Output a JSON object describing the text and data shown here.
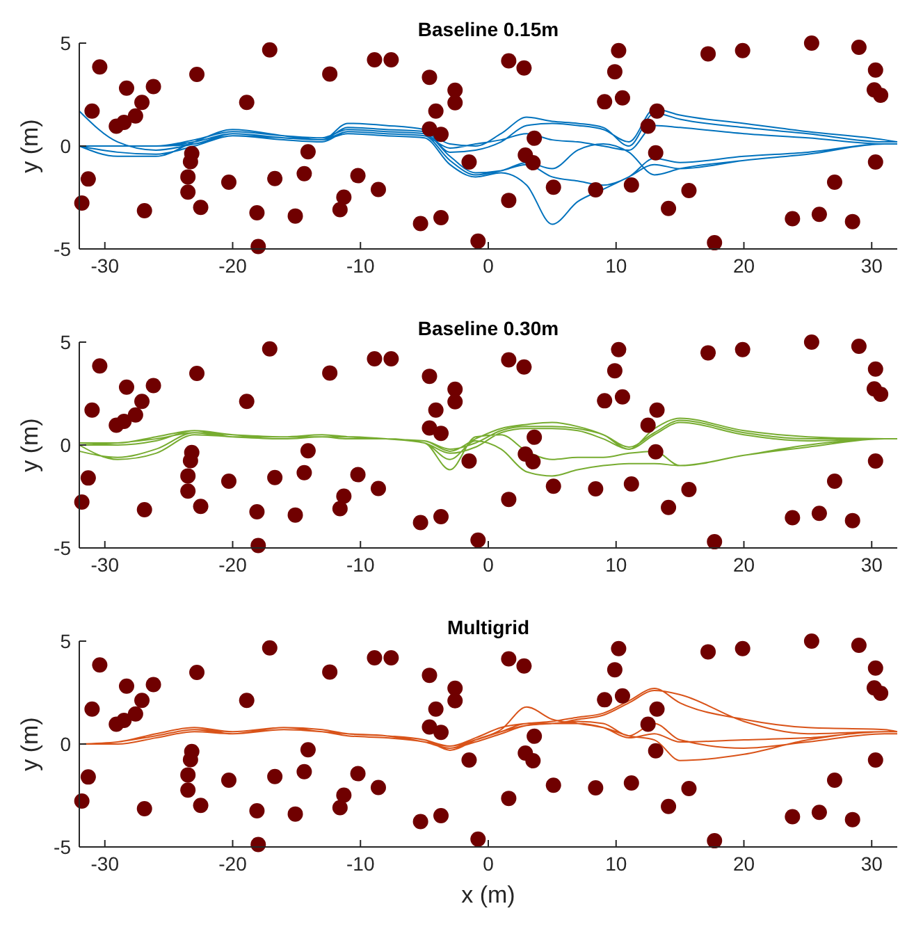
{
  "chart_data": [
    {
      "type": "line",
      "title": "Baseline 0.15m",
      "ylabel": "y (m)",
      "xlim": [
        -32,
        32
      ],
      "ylim": [
        -5,
        5
      ],
      "xticks": [
        -30,
        -20,
        -10,
        0,
        10,
        20,
        30
      ],
      "yticks": [
        -5,
        0,
        5
      ],
      "grid": false,
      "line_style": "solid",
      "series": [
        {
          "color": "#0072bd",
          "x": [
            -32,
            -29,
            -26,
            -23,
            -20,
            -16,
            -13,
            -11,
            -8,
            -5,
            -3,
            -1,
            1,
            3,
            5,
            7,
            9,
            11,
            13,
            15,
            20,
            25,
            31,
            32,
            null,
            -32,
            -29,
            -26,
            -23,
            -20,
            -16,
            -13,
            -11,
            -8,
            -5,
            -3,
            -1,
            1,
            3,
            5,
            7,
            9,
            11,
            13,
            15,
            20,
            25,
            31,
            32,
            null,
            -32,
            -29,
            -26,
            -23,
            -20,
            -16,
            -13,
            -11,
            -8,
            -5,
            -3,
            -1,
            1,
            3,
            5,
            7,
            9,
            11,
            13,
            15,
            20,
            25,
            31,
            32,
            null,
            -32,
            -29,
            -26,
            -23,
            -20,
            -16,
            -13,
            -11,
            -8,
            -5,
            -3,
            -1,
            1,
            3,
            5,
            7,
            9,
            11,
            13,
            15,
            20,
            25,
            31,
            32,
            null,
            -32,
            -29,
            -26,
            -23,
            -20,
            -16,
            -13,
            -11,
            -8,
            -5,
            -3,
            -1,
            1,
            3,
            5,
            7,
            9,
            11,
            13,
            15,
            20,
            25,
            31,
            32,
            null,
            -32,
            -29,
            -26,
            -23,
            -20,
            -16,
            -13,
            -11,
            -8,
            -5,
            -3,
            -1,
            1,
            3,
            5,
            7,
            9,
            11,
            13,
            15,
            20,
            25,
            31,
            32
          ],
          "values": [
            0,
            0,
            0,
            0.2,
            0.6,
            0.4,
            0.3,
            0.9,
            0.8,
            0.7,
            0.1,
            0,
            0.6,
            1.4,
            1.2,
            1.1,
            0.9,
            0,
            1.6,
            1.3,
            0.9,
            0.6,
            0.2,
            0.2,
            null,
            0,
            -0.3,
            -0.4,
            0,
            0.5,
            0.3,
            0.2,
            0.7,
            0.6,
            0.5,
            -0.1,
            0.1,
            0.3,
            0.6,
            0.3,
            0.2,
            0,
            -0.2,
            1,
            0.9,
            0.6,
            0.4,
            0.1,
            0.1,
            null,
            0,
            0,
            0,
            0.3,
            0.7,
            0.5,
            0.4,
            0.8,
            0.7,
            0.6,
            -0.5,
            -1.3,
            -1.2,
            -0.8,
            -1.1,
            -0.2,
            0.1,
            -0.3,
            -1.4,
            -1.1,
            -0.7,
            -0.4,
            0.1,
            0.1,
            null,
            1.7,
            0.2,
            -0.2,
            0.1,
            0.5,
            0.4,
            0.3,
            0.6,
            0.5,
            0.4,
            -0.9,
            -1.5,
            -1.3,
            -1.9,
            -3.8,
            -2.7,
            -2.1,
            -1.5,
            -0.9,
            -1.1,
            -0.7,
            -0.4,
            0.1,
            0.1,
            null,
            0,
            -0.5,
            -0.5,
            0.2,
            0.8,
            0.5,
            0.3,
            1.1,
            1,
            0.8,
            -0.3,
            -0.2,
            0.2,
            1,
            1.1,
            1,
            0.8,
            0.2,
            1.8,
            1.5,
            1.1,
            0.7,
            0.3,
            0.2,
            null,
            0,
            0,
            0,
            0.1,
            0.6,
            0.4,
            0.3,
            0.7,
            0.6,
            0.5,
            -0.7,
            -1.4,
            -1.2,
            -0.9,
            -1.5,
            -1.7,
            -1.9,
            -1.5,
            -0.6,
            -0.8,
            -0.5,
            -0.3,
            0.1,
            0.1
          ]
        },
        {
          "type": "scatter",
          "marker": "circle",
          "color": "#700000",
          "x": [
            -30.4,
            -31,
            -31.3,
            -31.8,
            -29.1,
            -28.5,
            -27.6,
            -28.3,
            -27.1,
            -26.2,
            -26.9,
            -22.8,
            -23.2,
            -23.3,
            -23.5,
            -23.5,
            -22.5,
            -20.3,
            -18.9,
            -18.1,
            -18,
            -17.1,
            -16.7,
            -15.1,
            -14.4,
            -14.1,
            -12.4,
            -11.3,
            -11.6,
            -10.2,
            -8.9,
            -8.6,
            -7.6,
            -5.3,
            -4.6,
            -4.6,
            -4.1,
            -3.7,
            -3.7,
            -2.6,
            -2.6,
            -1.5,
            -0.8,
            1.6,
            1.6,
            2.8,
            3.6,
            2.9,
            3.5,
            5.1,
            8.4,
            9.1,
            9.9,
            10.2,
            10.5,
            11.2,
            12.5,
            13.2,
            13.1,
            14.1,
            15.7,
            17.2,
            17.7,
            19.9,
            23.8,
            25.3,
            25.9,
            27.1,
            28.5,
            29,
            30.3,
            30.3,
            30.2,
            30.7
          ],
          "values": [
            3.84,
            1.7,
            -1.6,
            -2.77,
            0.96,
            1.15,
            1.46,
            2.81,
            2.12,
            2.89,
            -3.14,
            3.48,
            -0.36,
            -0.76,
            -1.5,
            -2.24,
            -2.98,
            -1.76,
            2.12,
            -3.24,
            -4.88,
            4.67,
            -1.58,
            -3.4,
            -1.34,
            -0.28,
            3.5,
            -2.48,
            -3.09,
            -1.44,
            4.19,
            -2.11,
            4.19,
            -3.77,
            3.34,
            0.83,
            1.7,
            0.57,
            -3.48,
            2.71,
            2.1,
            -0.78,
            -4.62,
            4.14,
            -2.64,
            3.79,
            0.38,
            -0.44,
            -0.81,
            -2,
            -2.13,
            2.15,
            3.61,
            4.64,
            2.34,
            -1.89,
            0.96,
            1.7,
            -0.33,
            -3.03,
            -2.16,
            4.48,
            -4.7,
            4.64,
            -3.53,
            5,
            -3.32,
            -1.76,
            -3.67,
            4.8,
            3.69,
            -0.78,
            2.73,
            2.47
          ]
        }
      ]
    },
    {
      "type": "line",
      "title": "Baseline 0.30m",
      "ylabel": "y (m)",
      "xlim": [
        -32,
        32
      ],
      "ylim": [
        -5,
        5
      ],
      "xticks": [
        -30,
        -20,
        -10,
        0,
        10,
        20,
        30
      ],
      "yticks": [
        -5,
        0,
        5
      ],
      "grid": false,
      "line_style": "solid",
      "series": [
        {
          "color": "#77ac30",
          "x": [
            -32,
            -29,
            -26,
            -23,
            -20,
            -16,
            -13,
            -11,
            -8,
            -5,
            -3,
            -1,
            1,
            3,
            5,
            7,
            9,
            11,
            13,
            15,
            20,
            25,
            31,
            32,
            null,
            -32,
            -29,
            -26,
            -23,
            -20,
            -16,
            -13,
            -11,
            -8,
            -5,
            -3,
            -1,
            1,
            3,
            5,
            7,
            9,
            11,
            13,
            15,
            20,
            25,
            31,
            32,
            null,
            -32,
            -29,
            -26,
            -23,
            -20,
            -16,
            -13,
            -11,
            -8,
            -5,
            -3,
            -1,
            1,
            3,
            5,
            7,
            9,
            11,
            13,
            15,
            20,
            25,
            31,
            32,
            null,
            -32,
            -29,
            -26,
            -23,
            -20,
            -16,
            -13,
            -11,
            -8,
            -5,
            -3,
            -1,
            1,
            3,
            5,
            7,
            9,
            11,
            13,
            15,
            20,
            25,
            31,
            32,
            null,
            -32,
            -29,
            -26,
            -23,
            -20,
            -16,
            -13,
            -11,
            -8,
            -5,
            -3,
            -1,
            1,
            3,
            5,
            7,
            9,
            11,
            13,
            15,
            20,
            25,
            31,
            32
          ],
          "values": [
            0,
            0.1,
            0.3,
            0.6,
            0.4,
            0.4,
            0.4,
            0.4,
            0.3,
            0.2,
            -0.2,
            0.1,
            0.7,
            0.9,
            0.9,
            0.8,
            0.5,
            -0.1,
            0.6,
            1.2,
            0.6,
            0.3,
            0.3,
            0.3,
            null,
            0,
            -0.7,
            -0.4,
            0.5,
            0.4,
            0.3,
            0.4,
            0.4,
            0.3,
            0.1,
            -0.4,
            -0.1,
            0.6,
            0.8,
            0.8,
            0.7,
            0.3,
            -0.2,
            0.5,
            1.1,
            0.5,
            0.2,
            0.3,
            0.3,
            null,
            -0.3,
            -0.6,
            -0.2,
            0.6,
            0.5,
            0.4,
            0.4,
            0.3,
            0.3,
            0.1,
            -0.7,
            0.2,
            -0.2,
            -1.3,
            -1.5,
            -1.2,
            -1,
            -0.9,
            -0.9,
            -1,
            -0.5,
            -0.1,
            0.3,
            0.3,
            null,
            0,
            0,
            0.2,
            0.7,
            0.4,
            0.4,
            0.4,
            0.4,
            0.3,
            0.1,
            -1.2,
            0.4,
            0.5,
            -0.3,
            -0.7,
            -0.6,
            -0.6,
            -0.4,
            -0.3,
            -1,
            -0.5,
            0,
            0.3,
            0.3,
            null,
            0.1,
            0.1,
            0.4,
            0.7,
            0.5,
            0.4,
            0.5,
            0.4,
            0.3,
            0.2,
            -0.3,
            0.3,
            0.8,
            1,
            1.1,
            0.9,
            0.5,
            -0.2,
            0.8,
            1.3,
            0.7,
            0.4,
            0.3,
            0.3
          ]
        },
        {
          "type": "scatter",
          "marker": "circle",
          "color": "#700000",
          "x": [
            -30.4,
            -31,
            -31.3,
            -31.8,
            -29.1,
            -28.5,
            -27.6,
            -28.3,
            -27.1,
            -26.2,
            -26.9,
            -22.8,
            -23.2,
            -23.3,
            -23.5,
            -23.5,
            -22.5,
            -20.3,
            -18.9,
            -18.1,
            -18,
            -17.1,
            -16.7,
            -15.1,
            -14.4,
            -14.1,
            -12.4,
            -11.3,
            -11.6,
            -10.2,
            -8.9,
            -8.6,
            -7.6,
            -5.3,
            -4.6,
            -4.6,
            -4.1,
            -3.7,
            -3.7,
            -2.6,
            -2.6,
            -1.5,
            -0.8,
            1.6,
            1.6,
            2.8,
            3.6,
            2.9,
            3.5,
            5.1,
            8.4,
            9.1,
            9.9,
            10.2,
            10.5,
            11.2,
            12.5,
            13.2,
            13.1,
            14.1,
            15.7,
            17.2,
            17.7,
            19.9,
            23.8,
            25.3,
            25.9,
            27.1,
            28.5,
            29,
            30.3,
            30.3,
            30.2,
            30.7
          ],
          "values": [
            3.84,
            1.7,
            -1.6,
            -2.77,
            0.96,
            1.15,
            1.46,
            2.81,
            2.12,
            2.89,
            -3.14,
            3.48,
            -0.36,
            -0.76,
            -1.5,
            -2.24,
            -2.98,
            -1.76,
            2.12,
            -3.24,
            -4.88,
            4.67,
            -1.58,
            -3.4,
            -1.34,
            -0.28,
            3.5,
            -2.48,
            -3.09,
            -1.44,
            4.19,
            -2.11,
            4.19,
            -3.77,
            3.34,
            0.83,
            1.7,
            0.57,
            -3.48,
            2.71,
            2.1,
            -0.78,
            -4.62,
            4.14,
            -2.64,
            3.79,
            0.38,
            -0.44,
            -0.81,
            -2,
            -2.13,
            2.15,
            3.61,
            4.64,
            2.34,
            -1.89,
            0.96,
            1.7,
            -0.33,
            -3.03,
            -2.16,
            4.48,
            -4.7,
            4.64,
            -3.53,
            5,
            -3.32,
            -1.76,
            -3.67,
            4.8,
            3.69,
            -0.78,
            2.73,
            2.47
          ]
        }
      ]
    },
    {
      "type": "line",
      "title": "Multigrid",
      "xlabel": "x (m)",
      "ylabel": "y (m)",
      "xlim": [
        -32,
        32
      ],
      "ylim": [
        -5,
        5
      ],
      "xticks": [
        -30,
        -20,
        -10,
        0,
        10,
        20,
        30
      ],
      "yticks": [
        -5,
        0,
        5
      ],
      "grid": false,
      "line_style": "solid",
      "series": [
        {
          "color": "#d95319",
          "x": [
            -32,
            -29,
            -26,
            -23,
            -20,
            -16,
            -13,
            -11,
            -8,
            -5,
            -3,
            -1,
            1,
            3,
            5,
            7,
            9,
            11,
            13,
            15,
            20,
            25,
            31,
            32,
            null,
            -32,
            -29,
            -26,
            -23,
            -20,
            -16,
            -13,
            -11,
            -8,
            -5,
            -3,
            -1,
            1,
            3,
            5,
            7,
            9,
            11,
            13,
            15,
            20,
            25,
            31,
            32,
            null,
            -32,
            -29,
            -26,
            -23,
            -20,
            -16,
            -13,
            -11,
            -8,
            -5,
            -3,
            -1,
            1,
            3,
            5,
            7,
            9,
            11,
            13,
            15,
            20,
            25,
            31,
            32,
            null,
            -32,
            -29,
            -26,
            -23,
            -20,
            -16,
            -13,
            -11,
            -8,
            -5,
            -3,
            -1,
            1,
            3,
            5,
            7,
            9,
            11,
            13,
            15,
            20,
            25,
            31,
            32,
            null,
            -32,
            -29,
            -26,
            -23,
            -20,
            -16,
            -13,
            -11,
            -8,
            -5,
            -3,
            -1,
            1,
            3,
            5,
            7,
            9,
            11,
            13,
            15,
            20,
            25,
            31,
            32
          ],
          "values": [
            0,
            0.1,
            0.4,
            0.7,
            0.6,
            0.8,
            0.7,
            0.5,
            0.4,
            0.2,
            -0.1,
            0.2,
            0.6,
            1,
            1,
            1.2,
            1.4,
            2,
            2.6,
            2.4,
            1.1,
            0.5,
            0.6,
            0.6,
            null,
            0,
            0.1,
            0.4,
            0.7,
            0.5,
            0.8,
            0.6,
            0.5,
            0.4,
            0.1,
            -0.2,
            0.1,
            0.5,
            0.9,
            1,
            1,
            0.8,
            0.3,
            0.5,
            0.1,
            0.2,
            0.3,
            0.6,
            0.6,
            null,
            0,
            0.1,
            0.5,
            0.8,
            0.6,
            0.8,
            0.7,
            0.5,
            0.4,
            0.2,
            -0.3,
            0.2,
            0.7,
            1.8,
            1.2,
            1,
            0.8,
            0.4,
            0.2,
            -0.8,
            -0.5,
            0.2,
            0.6,
            0.6,
            null,
            0,
            0.1,
            0.4,
            0.7,
            0.5,
            0.7,
            0.6,
            0.5,
            0.4,
            0.1,
            -0.1,
            0.3,
            0.8,
            1,
            1.1,
            1.3,
            1.5,
            2.1,
            2.7,
            2,
            1.2,
            0.8,
            0.7,
            0.6,
            null,
            0,
            0,
            0.3,
            0.6,
            0.5,
            0.7,
            0.6,
            0.4,
            0.3,
            0.1,
            -0.2,
            0.2,
            0.6,
            0.9,
            1,
            1.1,
            1,
            0.4,
            1,
            0.2,
            -0.2,
            0.1,
            0.5,
            0.5
          ]
        },
        {
          "type": "scatter",
          "marker": "circle",
          "color": "#700000",
          "x": [
            -30.4,
            -31,
            -31.3,
            -31.8,
            -29.1,
            -28.5,
            -27.6,
            -28.3,
            -27.1,
            -26.2,
            -26.9,
            -22.8,
            -23.2,
            -23.3,
            -23.5,
            -23.5,
            -22.5,
            -20.3,
            -18.9,
            -18.1,
            -18,
            -17.1,
            -16.7,
            -15.1,
            -14.4,
            -14.1,
            -12.4,
            -11.3,
            -11.6,
            -10.2,
            -8.9,
            -8.6,
            -7.6,
            -5.3,
            -4.6,
            -4.6,
            -4.1,
            -3.7,
            -3.7,
            -2.6,
            -2.6,
            -1.5,
            -0.8,
            1.6,
            1.6,
            2.8,
            3.6,
            2.9,
            3.5,
            5.1,
            8.4,
            9.1,
            9.9,
            10.2,
            10.5,
            11.2,
            12.5,
            13.2,
            13.1,
            14.1,
            15.7,
            17.2,
            17.7,
            19.9,
            23.8,
            25.3,
            25.9,
            27.1,
            28.5,
            29,
            30.3,
            30.3,
            30.2,
            30.7
          ],
          "values": [
            3.84,
            1.7,
            -1.6,
            -2.77,
            0.96,
            1.15,
            1.46,
            2.81,
            2.12,
            2.89,
            -3.14,
            3.48,
            -0.36,
            -0.76,
            -1.5,
            -2.24,
            -2.98,
            -1.76,
            2.12,
            -3.24,
            -4.88,
            4.67,
            -1.58,
            -3.4,
            -1.34,
            -0.28,
            3.5,
            -2.48,
            -3.09,
            -1.44,
            4.19,
            -2.11,
            4.19,
            -3.77,
            3.34,
            0.83,
            1.7,
            0.57,
            -3.48,
            2.71,
            2.1,
            -0.78,
            -4.62,
            4.14,
            -2.64,
            3.79,
            0.38,
            -0.44,
            -0.81,
            -2,
            -2.13,
            2.15,
            3.61,
            4.64,
            2.34,
            -1.89,
            0.96,
            1.7,
            -0.33,
            -3.03,
            -2.16,
            4.48,
            -4.7,
            4.64,
            -3.53,
            5,
            -3.32,
            -1.76,
            -3.67,
            4.8,
            3.69,
            -0.78,
            2.73,
            2.47
          ]
        }
      ]
    }
  ]
}
